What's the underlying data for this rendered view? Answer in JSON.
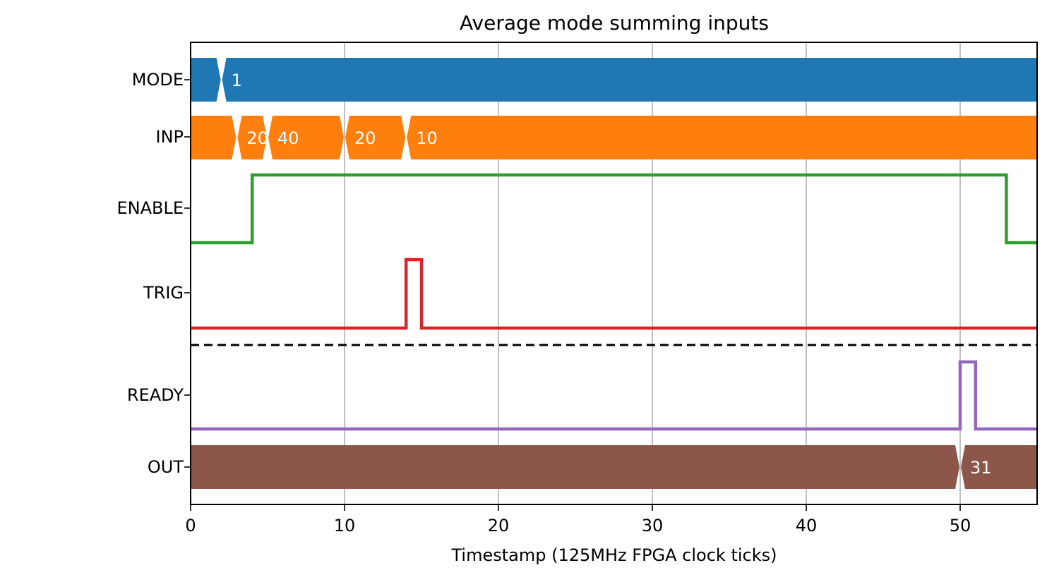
{
  "chart_data": {
    "type": "timing-diagram",
    "title": "Average mode summing inputs",
    "xlabel": "Timestamp (125MHz FPGA clock ticks)",
    "xlim": [
      0,
      55
    ],
    "xticks": [
      0,
      10,
      20,
      30,
      40,
      50
    ],
    "grid": "vertical",
    "signals": [
      {
        "name": "MODE",
        "kind": "bus",
        "color": "#1f77b4",
        "segments": [
          {
            "start": 0,
            "end": 2,
            "label": ""
          },
          {
            "start": 2,
            "end": 55,
            "label": "1"
          }
        ]
      },
      {
        "name": "INP",
        "kind": "bus",
        "color": "#ff7f0e",
        "segments": [
          {
            "start": 0,
            "end": 3,
            "label": ""
          },
          {
            "start": 3,
            "end": 5,
            "label": "20"
          },
          {
            "start": 5,
            "end": 10,
            "label": "40"
          },
          {
            "start": 10,
            "end": 14,
            "label": "20"
          },
          {
            "start": 14,
            "end": 55,
            "label": "10"
          }
        ]
      },
      {
        "name": "ENABLE",
        "kind": "wire",
        "color": "#2ca02c",
        "points": [
          [
            0,
            0
          ],
          [
            4,
            0
          ],
          [
            4,
            1
          ],
          [
            53,
            1
          ],
          [
            53,
            0
          ],
          [
            55,
            0
          ]
        ]
      },
      {
        "name": "TRIG",
        "kind": "wire",
        "color": "#d62728",
        "points": [
          [
            0,
            0
          ],
          [
            14,
            0
          ],
          [
            14,
            1
          ],
          [
            15,
            1
          ],
          [
            15,
            0
          ],
          [
            55,
            0
          ]
        ]
      },
      {
        "name": "READY",
        "kind": "wire",
        "color": "#9467bd",
        "points": [
          [
            0,
            0
          ],
          [
            50,
            0
          ],
          [
            50,
            1
          ],
          [
            51,
            1
          ],
          [
            51,
            0
          ],
          [
            55,
            0
          ]
        ]
      },
      {
        "name": "OUT",
        "kind": "bus",
        "color": "#8c564b",
        "segments": [
          {
            "start": 0,
            "end": 50,
            "label": ""
          },
          {
            "start": 50,
            "end": 55,
            "label": "31"
          }
        ]
      }
    ],
    "separator": "dashed line between TRIG and READY"
  }
}
